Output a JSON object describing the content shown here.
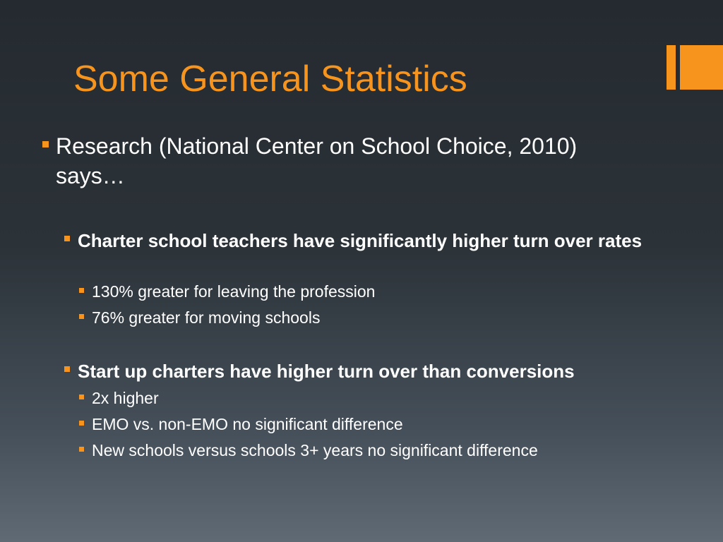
{
  "slide": {
    "title": "Some General Statistics",
    "accent_color": "#f7941d",
    "text_color": "#ffffff",
    "bullet_icon": "square-bullet-icon",
    "intro": "Research (National Center on School Choice, 2010) says…",
    "sections": [
      {
        "heading": "Charter school teachers have significantly higher turn over rates",
        "items": [
          "130% greater for leaving the profession",
          "76% greater for moving schools"
        ]
      },
      {
        "heading": "Start up charters have higher turn over than conversions",
        "items": [
          "2x higher",
          "EMO vs. non-EMO no significant difference",
          "New schools versus schools 3+ years no significant difference"
        ]
      }
    ]
  }
}
